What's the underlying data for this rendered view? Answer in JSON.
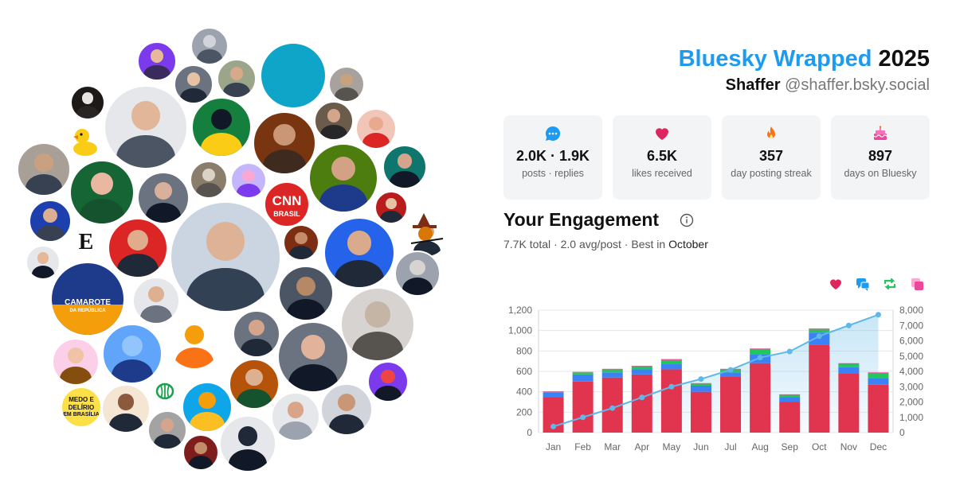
{
  "header": {
    "title_accent": "Bluesky Wrapped",
    "title_year": "2025",
    "display_name": "Shaffer",
    "handle": "@shaffer.bsky.social"
  },
  "stats": [
    {
      "icon": "speech-bubble-icon",
      "value": "2.0K · 1.9K",
      "label": "posts · replies",
      "color": "#1d9bf0"
    },
    {
      "icon": "heart-icon",
      "value": "6.5K",
      "label": "likes received",
      "color": "#e0245e"
    },
    {
      "icon": "flame-icon",
      "value": "357",
      "label": "day posting streak",
      "color": "#f97316"
    },
    {
      "icon": "cake-icon",
      "value": "897",
      "label": "days on Bluesky",
      "color": "#ec4899"
    }
  ],
  "engagement": {
    "title": "Your Engagement",
    "total_value": "7.7K",
    "total_label": "total",
    "avg_value": "2.0",
    "avg_label": "avg/post",
    "best_label": "Best in",
    "best_month": "October",
    "legend_icons": [
      {
        "icon": "heart-icon",
        "color": "#e0245e"
      },
      {
        "icon": "reply-icon",
        "color": "#1d9bf0"
      },
      {
        "icon": "repost-icon",
        "color": "#22c55e"
      },
      {
        "icon": "quote-icon",
        "color": "#ec4899"
      }
    ]
  },
  "avatar_cloud": {
    "badges": [
      {
        "name": "cnn-brasil-avatar",
        "lines": [
          "CNN",
          "BRASIL"
        ]
      },
      {
        "name": "camarote-avatar",
        "lines": [
          "CAMAROTE",
          "DA REPÚBLICA"
        ]
      },
      {
        "name": "medo-delirio-avatar",
        "lines": [
          "MEDO E",
          "DELÍRIO",
          "EM BRASÍLIA"
        ]
      },
      {
        "name": "letter-e-avatar",
        "lines": [
          "E"
        ]
      }
    ]
  },
  "chart_data": {
    "type": "bar",
    "categories": [
      "Jan",
      "Feb",
      "Mar",
      "Apr",
      "May",
      "Jun",
      "Jul",
      "Aug",
      "Sep",
      "Oct",
      "Nov",
      "Dec"
    ],
    "series": [
      {
        "values": [
          350,
          500,
          540,
          570,
          620,
          400,
          550,
          680,
          300,
          860,
          580,
          470
        ],
        "color": "#e0344f"
      },
      {
        "values": [
          40,
          70,
          50,
          50,
          50,
          60,
          40,
          90,
          50,
          120,
          60,
          60
        ],
        "color": "#3b82f6"
      },
      {
        "values": [
          10,
          20,
          30,
          30,
          40,
          20,
          30,
          50,
          20,
          30,
          30,
          50
        ],
        "color": "#22c55e"
      },
      {
        "values": [
          5,
          5,
          5,
          5,
          10,
          5,
          5,
          5,
          5,
          10,
          10,
          10
        ],
        "color": "#ec4899"
      }
    ],
    "cumulative": {
      "values": [
        400,
        1000,
        1600,
        2300,
        3000,
        3500,
        4100,
        4900,
        5300,
        6300,
        7000,
        7700
      ],
      "color": "#60b8e8"
    },
    "ylim": [
      0,
      1200
    ],
    "yticks": [
      "0",
      "200",
      "400",
      "600",
      "800",
      "1,000",
      "1,200"
    ],
    "y2lim": [
      0,
      8000
    ],
    "y2ticks": [
      "0",
      "1,000",
      "2,000",
      "3,000",
      "4,000",
      "5,000",
      "6,000",
      "7,000",
      "8,000"
    ],
    "grid": true
  }
}
